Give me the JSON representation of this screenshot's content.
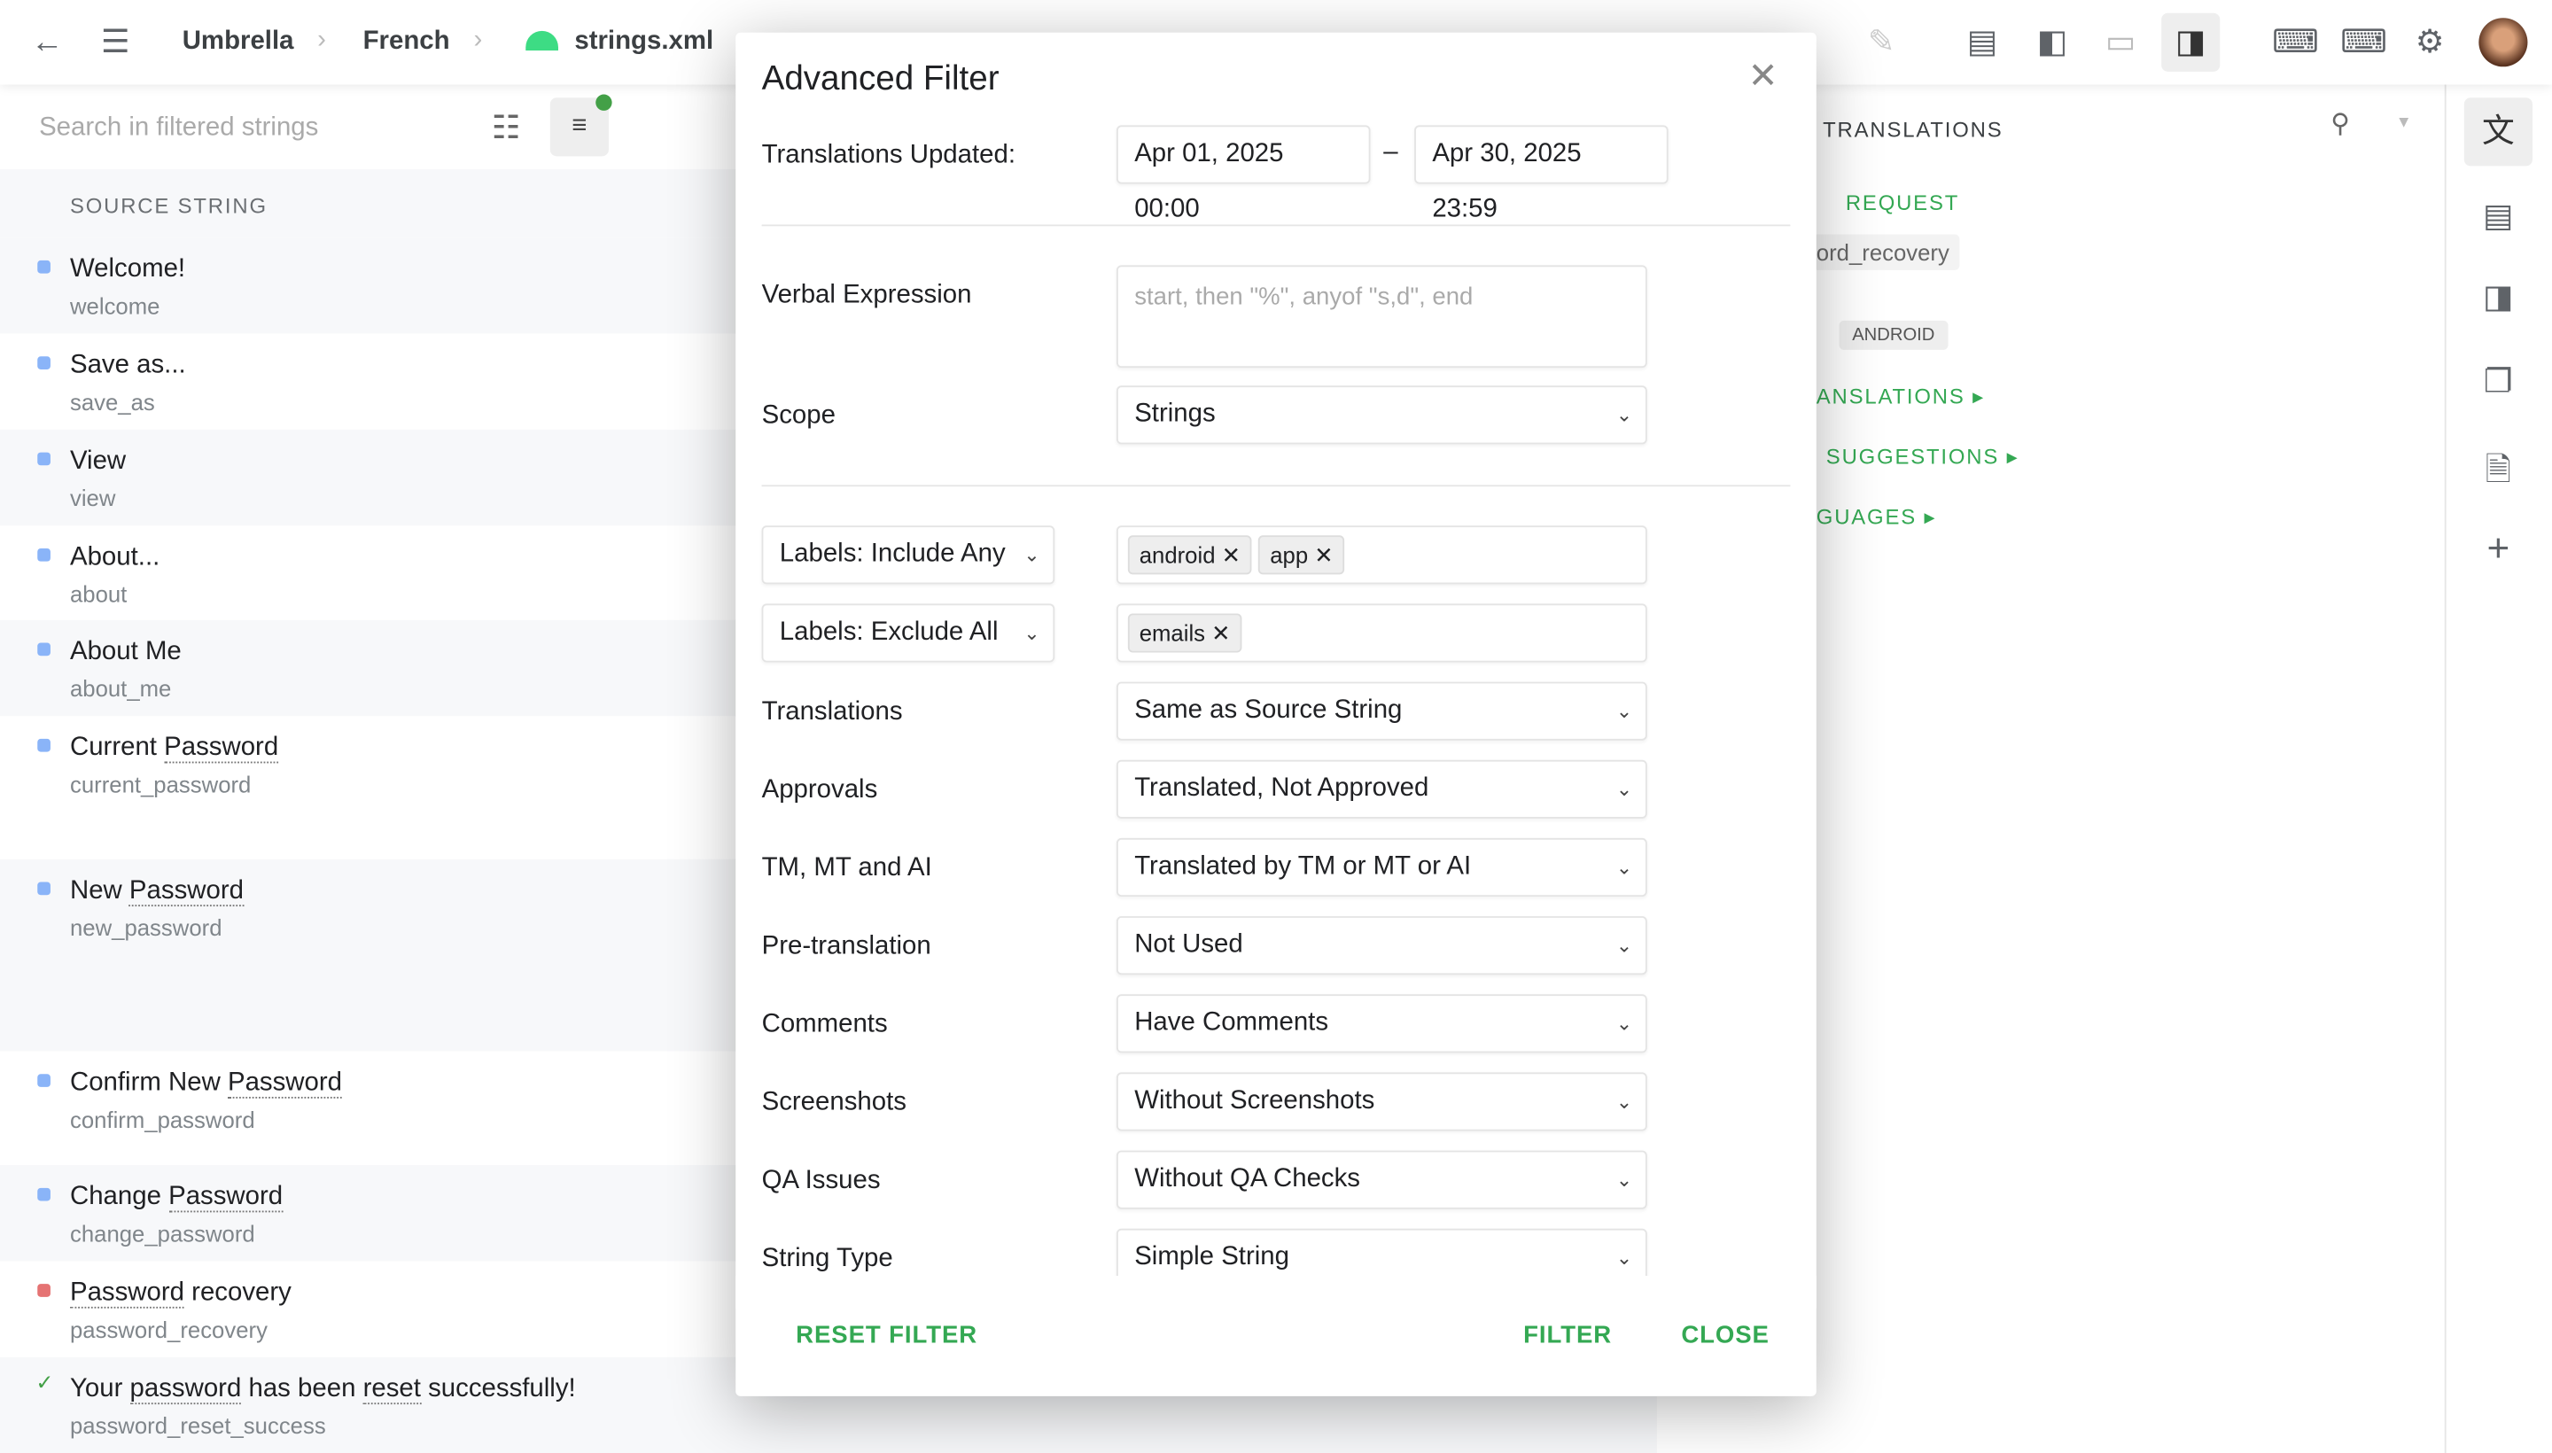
{
  "topbar": {
    "breadcrumb": [
      "Umbrella",
      "French",
      "strings.xml"
    ]
  },
  "list": {
    "search_placeholder": "Search in filtered strings",
    "header": "SOURCE STRING",
    "rows": [
      {
        "text": "Welcome!",
        "key": "welcome",
        "status": "blue"
      },
      {
        "text": "Save as...",
        "key": "save_as",
        "status": "blue"
      },
      {
        "text": "View",
        "key": "view",
        "status": "blue"
      },
      {
        "text": "About...",
        "key": "about",
        "status": "blue"
      },
      {
        "text": "About Me",
        "key": "about_me",
        "status": "blue"
      },
      {
        "text_pre": "Current ",
        "term": "Password",
        "key": "current_password",
        "status": "blue"
      },
      {
        "text_pre": "New ",
        "term": "Password",
        "key": "new_password",
        "status": "blue"
      },
      {
        "text_pre": "Confirm New ",
        "term": "Password",
        "key": "confirm_password",
        "status": "blue"
      },
      {
        "text_pre": "Change ",
        "term": "Password",
        "key": "change_password",
        "status": "blue"
      },
      {
        "term": "Password",
        "text_post": " recovery",
        "key": "password_recovery",
        "status": "red"
      },
      {
        "text_pre": "Your ",
        "term": "password",
        "text_mid": " has been ",
        "term2": "reset",
        "text_post": " successfully!",
        "key": "password_reset_success",
        "status": "check"
      }
    ]
  },
  "right_panel": {
    "title": "TRANSLATIONS",
    "request": "REQUEST",
    "key_chip": "ord_recovery",
    "label_chip": "ANDROID",
    "sections": [
      "ANSLATIONS",
      "SUGGESTIONS",
      "GUAGES"
    ]
  },
  "modal": {
    "title": "Advanced Filter",
    "updated_label": "Translations Updated:",
    "date_from": "Apr 01, 2025 00:00",
    "date_sep": "–",
    "date_to": "Apr 30, 2025 23:59",
    "verbal_label": "Verbal Expression",
    "verbal_placeholder": "start, then \"%\", anyof \"s,d\", end",
    "scope_label": "Scope",
    "scope": "Strings",
    "include_select": "Labels: Include Any",
    "include_tags": [
      "android",
      "app"
    ],
    "exclude_select": "Labels: Exclude All",
    "exclude_tags": [
      "emails"
    ],
    "filters": [
      {
        "label": "Translations",
        "value": "Same as Source String"
      },
      {
        "label": "Approvals",
        "value": "Translated, Not Approved"
      },
      {
        "label": "TM, MT and AI",
        "value": "Translated by TM or MT or AI"
      },
      {
        "label": "Pre-translation",
        "value": "Not Used"
      },
      {
        "label": "Comments",
        "value": "Have Comments"
      },
      {
        "label": "Screenshots",
        "value": "Without Screenshots"
      },
      {
        "label": "QA Issues",
        "value": "Without QA Checks"
      },
      {
        "label": "String Type",
        "value": "Simple String"
      }
    ],
    "reset": "RESET FILTER",
    "filter": "FILTER",
    "close": "CLOSE"
  },
  "colors": {
    "accent": "#34a853",
    "blue_status": "#8ab4f8",
    "red_status": "#e57373"
  }
}
